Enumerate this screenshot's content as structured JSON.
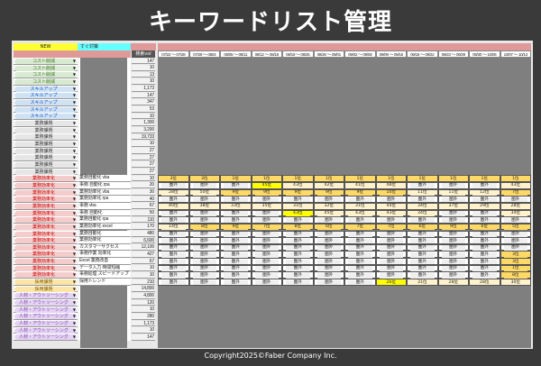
{
  "title": "キーワードリスト管理",
  "footer": "Copyright2025©Faber Company Inc.",
  "header": {
    "new_label": "NEW",
    "urgent_label": "すぐ対策",
    "volume_label": "検索vol",
    "dates": [
      "07/22 ～ 07/28",
      "07/29 ～ 0804",
      "08/05 ～ 08/11",
      "08/12 ～ 08/18",
      "08/19 ～ 08/25",
      "08/26 ～ 09/01",
      "09/02 ～ 09/08",
      "09/09 ～ 09/15",
      "09/16 ～ 09/22",
      "09/23 ～ 09/29",
      "09/30 ～ 10/06",
      "10/07 ～ 10/13"
    ]
  },
  "colors": {
    "background": "#3a3a3a",
    "new": "#ffff33",
    "urgent": "#66ffff",
    "header_pink": "#e09999",
    "rank_top10": "#ffd966",
    "rank_mid": "#fff2cc",
    "rank_out": "#efefef",
    "rank_highlight": "#ffff00",
    "categories": {
      "コスト削減": {
        "bg": "#d9ead3",
        "fg": "#38761d"
      },
      "スキルアップ": {
        "bg": "#cfe2f3",
        "fg": "#1155cc"
      },
      "業務課題": {
        "bg": "#e6e6e6",
        "fg": "#333333"
      },
      "業務効率化": {
        "bg": "#f4cccc",
        "fg": "#cc0000"
      },
      "採用課題": {
        "bg": "#fce5a7",
        "fg": "#7f6000"
      },
      "人材・アウトソーシング": {
        "bg": "#e4d3f3",
        "fg": "#7b3fa8"
      }
    }
  },
  "rows": [
    {
      "category": "コスト削減",
      "volume": "147"
    },
    {
      "category": "コスト削減",
      "volume": "10"
    },
    {
      "category": "コスト削減",
      "volume": "13"
    },
    {
      "category": "コスト削減",
      "volume": "10"
    },
    {
      "category": "スキルアップ",
      "volume": "1,173"
    },
    {
      "category": "スキルアップ",
      "volume": "147"
    },
    {
      "category": "スキルアップ",
      "volume": "347"
    },
    {
      "category": "スキルアップ",
      "volume": "53"
    },
    {
      "category": "スキルアップ",
      "volume": "10"
    },
    {
      "category": "業務課題",
      "volume": "1,300"
    },
    {
      "category": "業務課題",
      "volume": "3,200"
    },
    {
      "category": "業務課題",
      "volume": "19,733"
    },
    {
      "category": "業務課題",
      "volume": "10"
    },
    {
      "category": "業務課題",
      "volume": "27"
    },
    {
      "category": "業務課題",
      "volume": "27"
    },
    {
      "category": "業務課題",
      "volume": "27"
    },
    {
      "category": "業務課題",
      "volume": "27"
    },
    {
      "category": "業務効率化",
      "keyword": "業務自動化 vba",
      "volume": "10",
      "ranks": [
        "3位",
        "3位",
        "1位",
        "1位",
        "1位",
        "1位",
        "1位",
        "1位",
        "1位",
        "1位",
        "1位",
        "1位"
      ]
    },
    {
      "category": "業務効率化",
      "keyword": "事務 自動化 rpa",
      "volume": "20",
      "ranks": [
        "圏外",
        "圏外",
        "圏外",
        "45位",
        "43位",
        "42位",
        "41位",
        "48位",
        "圏外",
        "圏外",
        "圏外",
        "43位"
      ],
      "highlight": [
        3
      ]
    },
    {
      "category": "業務効率化",
      "keyword": "業務効率化 vba",
      "volume": "30",
      "ranks": [
        "28位",
        "50位",
        "9位",
        "9位",
        "9位",
        "9位",
        "9位",
        "10位",
        "11位",
        "11位",
        "12位",
        "7位"
      ]
    },
    {
      "category": "業務効率化",
      "keyword": "業務効率化 rpa",
      "volume": "40",
      "ranks": [
        "圏外",
        "圏外",
        "圏外",
        "圏外",
        "圏外",
        "圏外",
        "圏外",
        "圏外",
        "圏外",
        "圏外",
        "圏外",
        "圏外"
      ]
    },
    {
      "category": "業務効率化",
      "keyword": "事務 vba",
      "volume": "67",
      "ranks": [
        "40位",
        "38位",
        "33位",
        "35位",
        "31位",
        "32位",
        "31位",
        "44位",
        "34位",
        "37位",
        "29位",
        "28位"
      ]
    },
    {
      "category": "業務効率化",
      "keyword": "事務 自動化",
      "volume": "50",
      "ranks": [
        "圏外",
        "圏外",
        "圏外",
        "圏外",
        "43位",
        "45位",
        "43位",
        "43位",
        "34位",
        "圏外",
        "圏外",
        "34位"
      ],
      "highlight": [
        4
      ]
    },
    {
      "category": "業務効率化",
      "keyword": "業務自動化 rpa",
      "volume": "110",
      "ranks": [
        "圏外",
        "圏外",
        "圏外",
        "圏外",
        "圏外",
        "圏外",
        "圏外",
        "圏外",
        "圏外",
        "圏外",
        "圏外",
        "圏外"
      ]
    },
    {
      "category": "業務効率化",
      "keyword": "業務効率化 excel",
      "volume": "170",
      "ranks": [
        "14位",
        "8位",
        "9位",
        "7位",
        "8位",
        "6位",
        "7位",
        "7位",
        "6位",
        "9位",
        "6位",
        "5位"
      ]
    },
    {
      "category": "業務効率化",
      "keyword": "業務自動化",
      "volume": "480",
      "ranks": [
        "圏外",
        "圏外",
        "圏外",
        "圏外",
        "圏外",
        "圏外",
        "圏外",
        "圏外",
        "圏外",
        "圏外",
        "圏外",
        "圏外"
      ]
    },
    {
      "category": "業務効率化",
      "keyword": "業務効率化",
      "volume": "6,600",
      "ranks": [
        "圏外",
        "圏外",
        "圏外",
        "圏外",
        "圏外",
        "圏外",
        "圏外",
        "圏外",
        "圏外",
        "圏外",
        "圏外",
        "圏外"
      ]
    },
    {
      "category": "業務効率化",
      "keyword": "カスタマーサクセス",
      "volume": "12,100",
      "ranks": [
        "圏外",
        "圏外",
        "圏外",
        "圏外",
        "圏外",
        "圏外",
        "圏外",
        "圏外",
        "圏外",
        "圏外",
        "圏外",
        "圏外"
      ]
    },
    {
      "category": "業務効率化",
      "keyword": "事務作業 効率化",
      "volume": "427",
      "ranks": [
        "圏外",
        "圏外",
        "圏外",
        "圏外",
        "圏外",
        "圏外",
        "圏外",
        "圏外",
        "圏外",
        "圏外",
        "圏外",
        "3位"
      ]
    },
    {
      "category": "業務効率化",
      "keyword": "Excel 業務改善",
      "volume": "67",
      "ranks": [
        "圏外",
        "圏外",
        "圏外",
        "圏外",
        "圏外",
        "圏外",
        "圏外",
        "圏外",
        "圏外",
        "圏外",
        "圏外",
        "3位"
      ]
    },
    {
      "category": "業務効率化",
      "keyword": "データ入力 時間短縮",
      "volume": "10",
      "ranks": [
        "圏外",
        "圏外",
        "圏外",
        "圏外",
        "圏外",
        "圏外",
        "圏外",
        "圏外",
        "圏外",
        "圏外",
        "圏外",
        "1位"
      ]
    },
    {
      "category": "業務効率化",
      "keyword": "事務処理 スピードアップ",
      "volume": "10",
      "ranks": [
        "圏外",
        "圏外",
        "圏外",
        "圏外",
        "圏外",
        "圏外",
        "圏外",
        "圏外",
        "圏外",
        "圏外",
        "圏外",
        "8位"
      ]
    },
    {
      "category": "採用課題",
      "keyword": "採用トレンド",
      "volume": "210",
      "ranks": [
        "圏外",
        "圏外",
        "圏外",
        "圏外",
        "圏外",
        "圏外",
        "圏外",
        "26位",
        "31位",
        "28位",
        "28位",
        "30位"
      ],
      "highlight": [
        7
      ]
    },
    {
      "category": "採用課題",
      "volume": "14,800"
    },
    {
      "category": "人材・アウトソーシング",
      "volume": "4,800"
    },
    {
      "category": "人材・アウトソーシング",
      "volume": "120"
    },
    {
      "category": "人材・アウトソーシング",
      "volume": "10"
    },
    {
      "category": "人材・アウトソーシング",
      "volume": "280"
    },
    {
      "category": "人材・アウトソーシング",
      "volume": "1,173"
    },
    {
      "category": "人材・アウトソーシング",
      "volume": "10"
    },
    {
      "category": "人材・アウトソーシング",
      "volume": "147"
    }
  ]
}
